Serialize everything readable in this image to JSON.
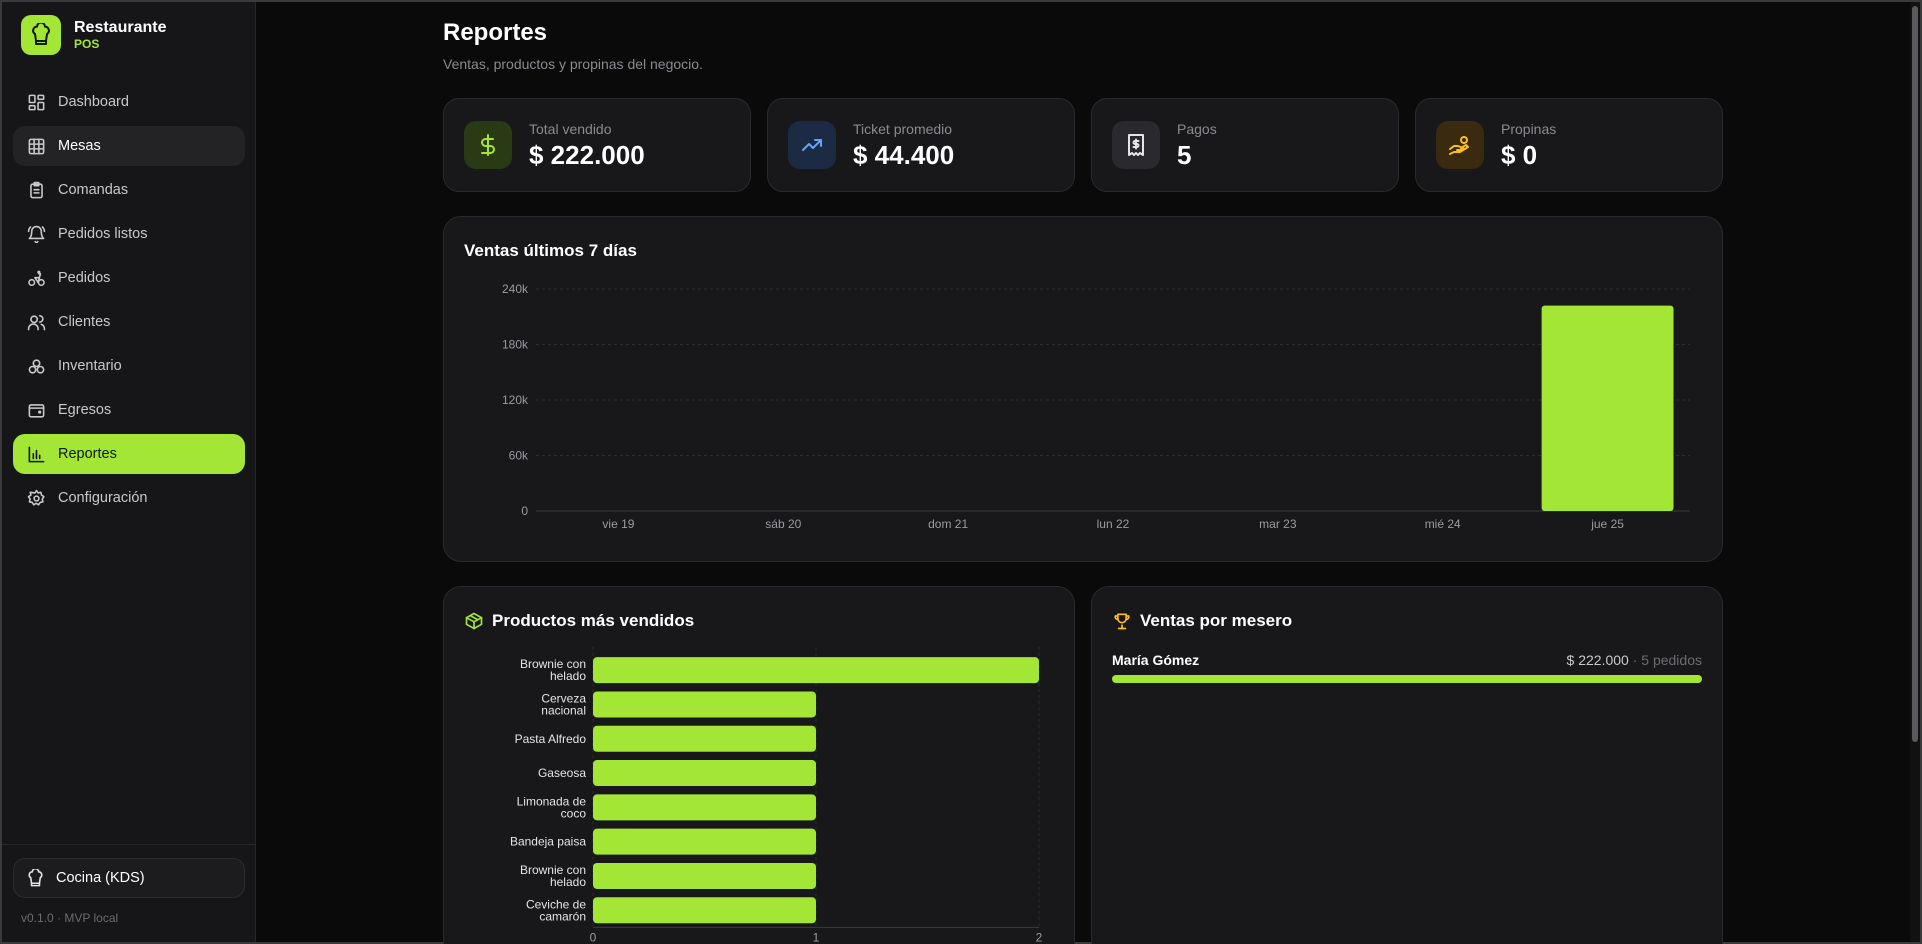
{
  "brand": {
    "title": "Restaurante",
    "subtitle": "POS"
  },
  "nav": [
    {
      "label": "Dashboard",
      "icon": "dashboard-icon",
      "state": ""
    },
    {
      "label": "Mesas",
      "icon": "grid-icon",
      "state": "hover"
    },
    {
      "label": "Comandas",
      "icon": "clipboard-icon",
      "state": ""
    },
    {
      "label": "Pedidos listos",
      "icon": "bell-icon",
      "state": ""
    },
    {
      "label": "Pedidos",
      "icon": "bike-icon",
      "state": ""
    },
    {
      "label": "Clientes",
      "icon": "users-icon",
      "state": ""
    },
    {
      "label": "Inventario",
      "icon": "boxes-icon",
      "state": ""
    },
    {
      "label": "Egresos",
      "icon": "wallet-icon",
      "state": ""
    },
    {
      "label": "Reportes",
      "icon": "bar-chart-icon",
      "state": "active"
    },
    {
      "label": "Configuración",
      "icon": "gear-icon",
      "state": ""
    }
  ],
  "sidebar_footer": {
    "kds_label": "Cocina (KDS)",
    "version": "v0.1.0 · MVP local"
  },
  "page": {
    "title": "Reportes",
    "subtitle": "Ventas, productos y propinas del negocio."
  },
  "stats": [
    {
      "label": "Total vendido",
      "value": "$ 222.000",
      "icon": "dollar-icon",
      "color": "#a3e635",
      "bg": "#2a3a14"
    },
    {
      "label": "Ticket promedio",
      "value": "$ 44.400",
      "icon": "trending-up-icon",
      "color": "#60a5fa",
      "bg": "#1c2a44"
    },
    {
      "label": "Pagos",
      "value": "5",
      "icon": "receipt-icon",
      "color": "#e5e5e5",
      "bg": "#2a2a2e"
    },
    {
      "label": "Propinas",
      "value": "$ 0",
      "icon": "hand-coins-icon",
      "color": "#fbbf24",
      "bg": "#3a2a10"
    }
  ],
  "colors": {
    "accent": "#a3e635",
    "surface": "#18181b",
    "background": "#0a0a0a"
  },
  "sales_chart": {
    "title": "Ventas últimos 7 días",
    "chart_data": {
      "type": "bar",
      "categories": [
        "vie 19",
        "sáb 20",
        "dom 21",
        "lun 22",
        "mar 23",
        "mié 24",
        "jue 25"
      ],
      "values": [
        0,
        0,
        0,
        0,
        0,
        0,
        222000
      ],
      "ylim": [
        0,
        240000
      ],
      "yticks": [
        0,
        60000,
        120000,
        180000,
        240000
      ],
      "ytick_labels": [
        "0",
        "60k",
        "120k",
        "180k",
        "240k"
      ],
      "grid": true
    }
  },
  "products_chart": {
    "title": "Productos más vendidos",
    "chart_data": {
      "type": "bar",
      "orientation": "horizontal",
      "categories": [
        [
          "Brownie con",
          "helado"
        ],
        [
          "Cerveza",
          "nacional"
        ],
        [
          "Pasta Alfredo"
        ],
        [
          "Gaseosa"
        ],
        [
          "Limonada de",
          "coco"
        ],
        [
          "Bandeja paisa"
        ],
        [
          "Brownie con",
          "helado"
        ],
        [
          "Ceviche de",
          "camarón"
        ]
      ],
      "values": [
        2,
        1,
        1,
        1,
        1,
        1,
        1,
        1
      ],
      "xlim": [
        0,
        2
      ],
      "xticks": [
        0,
        1,
        2
      ],
      "grid": true
    }
  },
  "waiters": {
    "title": "Ventas por mesero",
    "rows": [
      {
        "name": "María Gómez",
        "amount": "$ 222.000",
        "orders": "· 5 pedidos",
        "share": 1.0
      }
    ]
  }
}
